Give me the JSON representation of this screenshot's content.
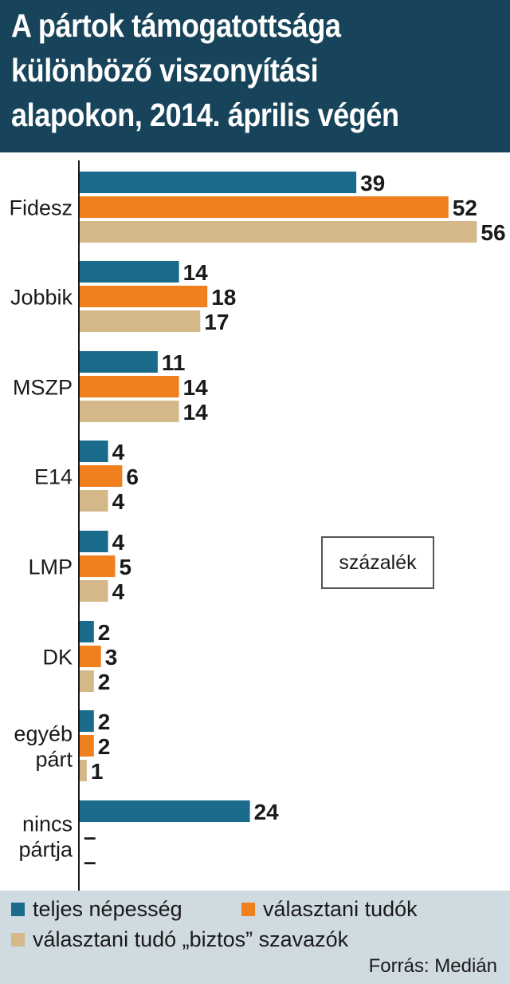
{
  "title_lines": [
    "A pártok támogatottsága",
    "különböző viszonyítási",
    "alapokon, 2014. április végén"
  ],
  "unit_label": "százalék",
  "source": "Forrás: Medián",
  "legend": [
    {
      "label": "teljes népesség",
      "color": "#1a6a8c"
    },
    {
      "label": "választani tudók",
      "color": "#f07f1e"
    },
    {
      "label": "választani tudó „biztos” szavazók",
      "color": "#d5b88a"
    }
  ],
  "chart_data": {
    "type": "bar",
    "orientation": "horizontal",
    "title": "A pártok támogatottsága különböző viszonyítási alapokon, 2014. április végén",
    "unit": "százalék",
    "categories": [
      [
        "Fidesz"
      ],
      [
        "Jobbik"
      ],
      [
        "MSZP"
      ],
      [
        "E14"
      ],
      [
        "LMP"
      ],
      [
        "DK"
      ],
      [
        "egyéb",
        "párt"
      ],
      [
        "nincs",
        "pártja"
      ]
    ],
    "series": [
      {
        "name": "teljes népesség",
        "color": "#1a6a8c",
        "values": [
          39,
          14,
          11,
          4,
          4,
          2,
          2,
          24
        ],
        "labels": [
          "39",
          "14",
          "11",
          "4",
          "4",
          "2",
          "2",
          "24"
        ]
      },
      {
        "name": "választani tudók",
        "color": "#f07f1e",
        "values": [
          52,
          18,
          14,
          6,
          5,
          3,
          2,
          null
        ],
        "labels": [
          "52",
          "18",
          "14",
          "6",
          "5",
          "3",
          "2",
          "–"
        ]
      },
      {
        "name": "választani tudó „biztos” szavazók",
        "color": "#d5b88a",
        "values": [
          56,
          17,
          14,
          4,
          4,
          2,
          1,
          null
        ],
        "labels": [
          "56",
          "17",
          "14",
          "4",
          "4",
          "2",
          "1",
          "–"
        ]
      }
    ],
    "xlim": [
      0,
      56
    ],
    "grid": false,
    "legend_position": "bottom"
  }
}
